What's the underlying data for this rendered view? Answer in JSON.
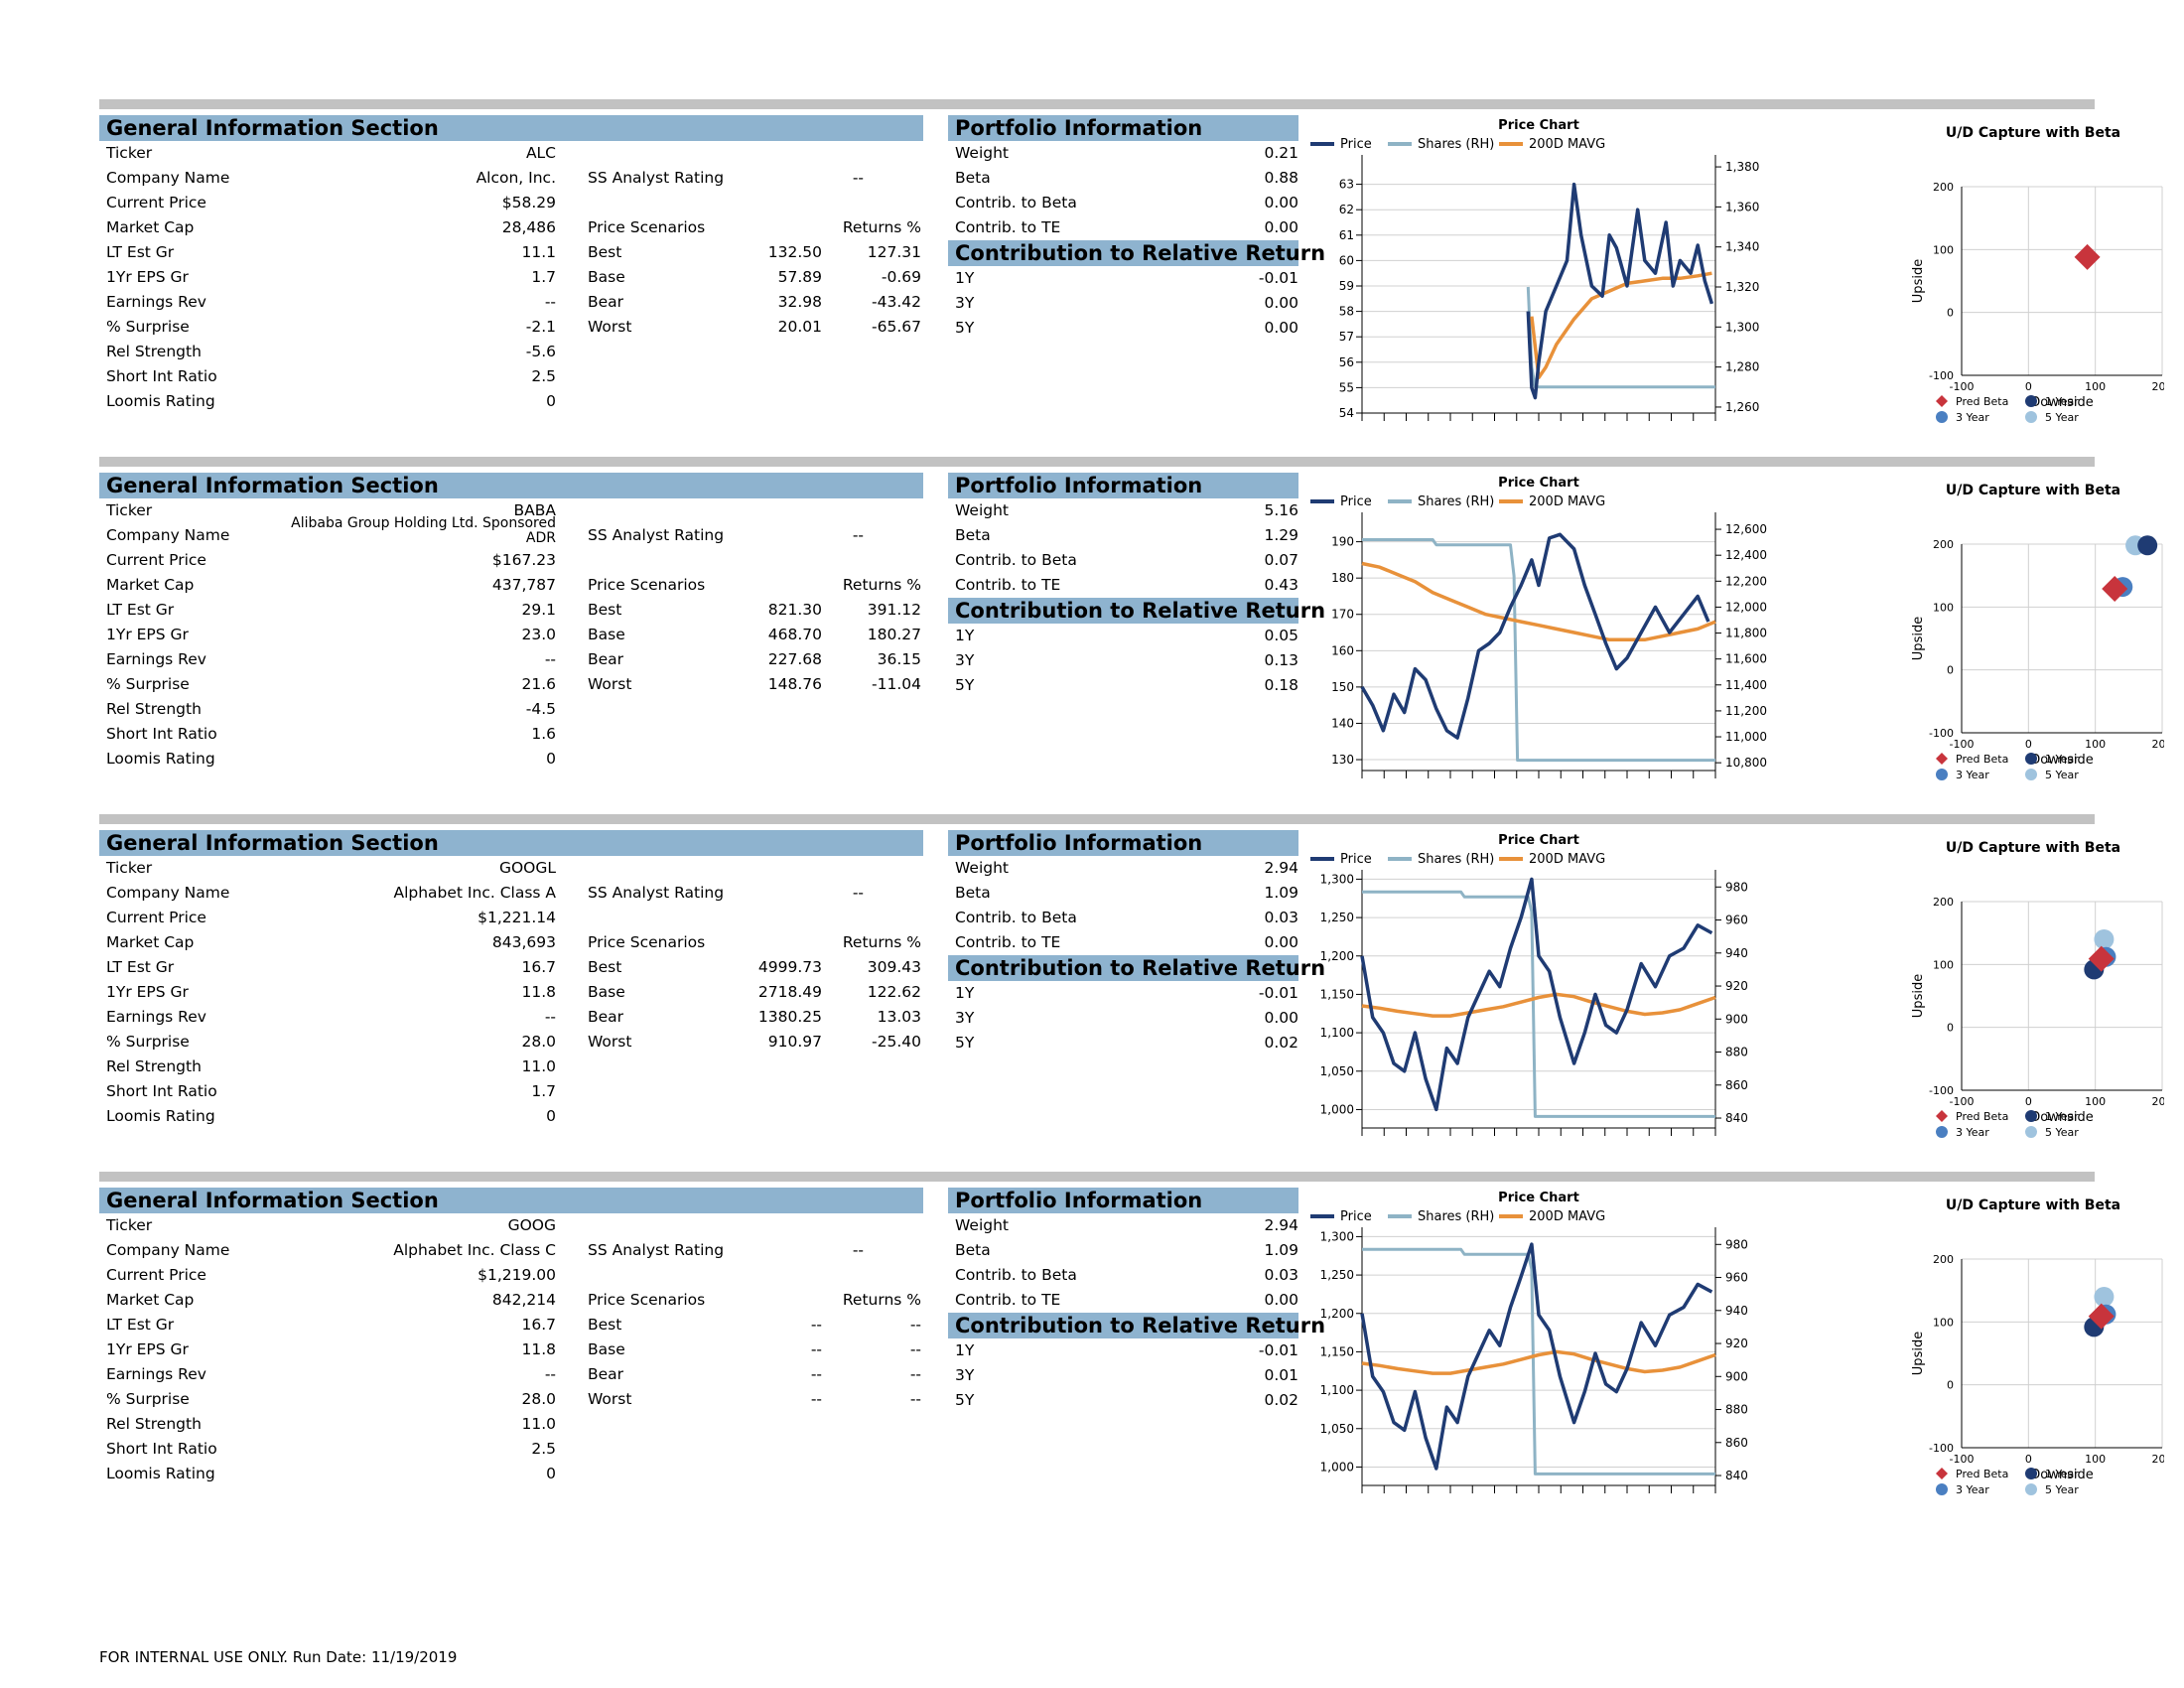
{
  "colors": {
    "section_header": "#8eb3cf",
    "divider": "#c2c2c2",
    "price": "#1f3b73",
    "shares": "#8eb3c5",
    "mavg": "#e8913a",
    "pred_beta": "#c8343c",
    "one_year": "#1f3b73",
    "three_year": "#4a7fc1",
    "five_year": "#9fc3de"
  },
  "footer": "FOR INTERNAL USE ONLY. Run Date: 11/19/2019",
  "labels": {
    "general_header": "General Information Section",
    "portfolio_header": "Portfolio Information",
    "contribution_header": "Contribution to Relative Return",
    "ss_analyst_rating": "SS Analyst Rating",
    "price_scenarios": "Price Scenarios",
    "returns_pct": "Returns %",
    "general_fields": [
      "Ticker",
      "Company Name",
      "Current Price",
      "Market Cap",
      "LT Est Gr",
      "1Yr EPS Gr",
      "Earnings Rev",
      "% Surprise",
      "Rel Strength",
      "Short Int Ratio",
      "Loomis Rating"
    ],
    "scenario_names": [
      "Best",
      "Base",
      "Bear",
      "Worst"
    ],
    "portfolio_fields": [
      "Weight",
      "Beta",
      "Contrib. to Beta",
      "Contrib. to TE"
    ],
    "contribution_fields": [
      "1Y",
      "3Y",
      "5Y"
    ],
    "price_chart_title": "Price Chart",
    "legend_price": "Price",
    "legend_shares": "Shares (RH)",
    "legend_mavg": "200D MAVG",
    "ud_title": "U/D Capture with Beta",
    "ud_xlabel": "Downside",
    "ud_ylabel": "Upside",
    "ud_legend": [
      "Pred Beta",
      "1 Year",
      "3 Year",
      "5 Year"
    ],
    "ud_ticks": [
      "-100",
      "0",
      "100",
      "200"
    ]
  },
  "stocks": [
    {
      "general": [
        "ALC",
        "Alcon, Inc.",
        "$58.29",
        "28,486",
        "11.1",
        "1.7",
        "--",
        "-2.1",
        "-5.6",
        "2.5",
        "0"
      ],
      "ss_rating": "--",
      "scenarios": [
        [
          "132.50",
          "127.31"
        ],
        [
          "57.89",
          "-0.69"
        ],
        [
          "32.98",
          "-43.42"
        ],
        [
          "20.01",
          "-65.67"
        ]
      ],
      "portfolio": [
        "0.21",
        "0.88",
        "0.00",
        "0.00"
      ],
      "contribution": [
        "-0.01",
        "0.00",
        "0.00"
      ]
    },
    {
      "general": [
        "BABA",
        "Alibaba Group Holding Ltd. Sponsored ADR",
        "$167.23",
        "437,787",
        "29.1",
        "23.0",
        "--",
        "21.6",
        "-4.5",
        "1.6",
        "0"
      ],
      "ss_rating": "--",
      "scenarios": [
        [
          "821.30",
          "391.12"
        ],
        [
          "468.70",
          "180.27"
        ],
        [
          "227.68",
          "36.15"
        ],
        [
          "148.76",
          "-11.04"
        ]
      ],
      "portfolio": [
        "5.16",
        "1.29",
        "0.07",
        "0.43"
      ],
      "contribution": [
        "0.05",
        "0.13",
        "0.18"
      ]
    },
    {
      "general": [
        "GOOGL",
        "Alphabet Inc. Class A",
        "$1,221.14",
        "843,693",
        "16.7",
        "11.8",
        "--",
        "28.0",
        "11.0",
        "1.7",
        "0"
      ],
      "ss_rating": "--",
      "scenarios": [
        [
          "4999.73",
          "309.43"
        ],
        [
          "2718.49",
          "122.62"
        ],
        [
          "1380.25",
          "13.03"
        ],
        [
          "910.97",
          "-25.40"
        ]
      ],
      "portfolio": [
        "2.94",
        "1.09",
        "0.03",
        "0.00"
      ],
      "contribution": [
        "-0.01",
        "0.00",
        "0.02"
      ]
    },
    {
      "general": [
        "GOOG",
        "Alphabet Inc. Class C",
        "$1,219.00",
        "842,214",
        "16.7",
        "11.8",
        "--",
        "28.0",
        "11.0",
        "2.5",
        "0"
      ],
      "ss_rating": "--",
      "scenarios": [
        [
          "--",
          "--"
        ],
        [
          "--",
          "--"
        ],
        [
          "--",
          "--"
        ],
        [
          "--",
          "--"
        ]
      ],
      "portfolio": [
        "2.94",
        "1.09",
        "0.03",
        "0.00"
      ],
      "contribution": [
        "-0.01",
        "0.01",
        "0.02"
      ]
    }
  ],
  "chart_data": [
    {
      "type": "line",
      "title": "Price Chart",
      "ticker": "ALC",
      "left_ticks": [
        "54",
        "55",
        "56",
        "57",
        "58",
        "59",
        "60",
        "61",
        "62",
        "63"
      ],
      "right_ticks": [
        "1,260",
        "1,280",
        "1,300",
        "1,320",
        "1,340",
        "1,360",
        "1,380"
      ],
      "ylim": [
        54,
        64
      ],
      "y2lim": [
        1257,
        1384
      ],
      "series": [
        {
          "name": "Price",
          "x": [
            0.47,
            0.48,
            0.49,
            0.5,
            0.52,
            0.55,
            0.58,
            0.6,
            0.62,
            0.65,
            0.68,
            0.7,
            0.72,
            0.75,
            0.78,
            0.8,
            0.83,
            0.86,
            0.88,
            0.9,
            0.93,
            0.95,
            0.97,
            0.99
          ],
          "values": [
            58,
            55,
            54.6,
            56,
            58,
            59,
            60,
            63,
            61,
            59,
            58.6,
            61,
            60.5,
            59,
            62,
            60,
            59.5,
            61.5,
            59,
            60,
            59.5,
            60.6,
            59.2,
            58.3
          ]
        },
        {
          "name": "Shares (RH)",
          "x": [
            0.47,
            0.48,
            0.49,
            1.0
          ],
          "values": [
            1320,
            1280,
            1270,
            1270
          ]
        },
        {
          "name": "200D MAVG",
          "x": [
            0.48,
            0.5,
            0.52,
            0.55,
            0.6,
            0.65,
            0.7,
            0.75,
            0.8,
            0.85,
            0.9,
            0.95,
            0.99
          ],
          "values": [
            57.8,
            55.4,
            55.8,
            56.7,
            57.7,
            58.5,
            58.8,
            59.1,
            59.2,
            59.3,
            59.3,
            59.4,
            59.5
          ]
        }
      ]
    },
    {
      "type": "line",
      "title": "Price Chart",
      "ticker": "BABA",
      "left_ticks": [
        "130",
        "140",
        "150",
        "160",
        "170",
        "180",
        "190"
      ],
      "right_ticks": [
        "10,800",
        "11,000",
        "11,200",
        "11,400",
        "11,600",
        "11,800",
        "12,000",
        "12,200",
        "12,400",
        "12,600"
      ],
      "ylim": [
        127,
        197
      ],
      "y2lim": [
        10740,
        12700
      ],
      "series": [
        {
          "name": "Price",
          "x": [
            0,
            0.03,
            0.06,
            0.09,
            0.12,
            0.15,
            0.18,
            0.21,
            0.24,
            0.27,
            0.3,
            0.33,
            0.36,
            0.39,
            0.42,
            0.45,
            0.48,
            0.5,
            0.53,
            0.56,
            0.6,
            0.63,
            0.66,
            0.69,
            0.72,
            0.75,
            0.79,
            0.83,
            0.87,
            0.91,
            0.95,
            0.98
          ],
          "values": [
            150,
            145,
            138,
            148,
            143,
            155,
            152,
            144,
            138,
            136,
            147,
            160,
            162,
            165,
            172,
            178,
            185,
            178,
            191,
            192,
            188,
            178,
            170,
            162,
            155,
            158,
            165,
            172,
            165,
            170,
            175,
            168
          ]
        },
        {
          "name": "Shares (RH)",
          "x": [
            0,
            0.2,
            0.21,
            0.42,
            0.43,
            0.44,
            1.0
          ],
          "values": [
            12520,
            12520,
            12480,
            12480,
            12240,
            10820,
            10820
          ]
        },
        {
          "name": "200D MAVG",
          "x": [
            0,
            0.05,
            0.1,
            0.15,
            0.2,
            0.25,
            0.3,
            0.35,
            0.4,
            0.45,
            0.5,
            0.55,
            0.6,
            0.65,
            0.7,
            0.75,
            0.8,
            0.85,
            0.9,
            0.95,
            1.0
          ],
          "values": [
            184,
            183,
            181,
            179,
            176,
            174,
            172,
            170,
            169,
            168,
            167,
            166,
            165,
            164,
            163,
            163,
            163,
            164,
            165,
            166,
            168
          ]
        }
      ]
    },
    {
      "type": "line",
      "title": "Price Chart",
      "ticker": "GOOGL",
      "left_ticks": [
        "1,000",
        "1,050",
        "1,100",
        "1,150",
        "1,200",
        "1,250",
        "1,300"
      ],
      "right_ticks": [
        "840",
        "860",
        "880",
        "900",
        "920",
        "940",
        "960",
        "980"
      ],
      "ylim": [
        976,
        1307
      ],
      "y2lim": [
        834,
        988
      ],
      "series": [
        {
          "name": "Price",
          "x": [
            0,
            0.03,
            0.06,
            0.09,
            0.12,
            0.15,
            0.18,
            0.21,
            0.24,
            0.27,
            0.3,
            0.33,
            0.36,
            0.39,
            0.42,
            0.45,
            0.48,
            0.5,
            0.53,
            0.56,
            0.6,
            0.63,
            0.66,
            0.69,
            0.72,
            0.75,
            0.79,
            0.83,
            0.87,
            0.91,
            0.95,
            0.99
          ],
          "values": [
            1200,
            1120,
            1100,
            1060,
            1050,
            1100,
            1040,
            1000,
            1080,
            1060,
            1120,
            1150,
            1180,
            1160,
            1210,
            1250,
            1300,
            1200,
            1180,
            1120,
            1060,
            1100,
            1150,
            1110,
            1100,
            1130,
            1190,
            1160,
            1200,
            1210,
            1240,
            1230
          ]
        },
        {
          "name": "Shares (RH)",
          "x": [
            0,
            0.28,
            0.29,
            0.47,
            0.48,
            0.49,
            1.0
          ],
          "values": [
            977,
            977,
            974,
            974,
            965,
            841,
            841
          ]
        },
        {
          "name": "200D MAVG",
          "x": [
            0,
            0.05,
            0.1,
            0.15,
            0.2,
            0.25,
            0.3,
            0.35,
            0.4,
            0.45,
            0.5,
            0.55,
            0.6,
            0.65,
            0.7,
            0.75,
            0.8,
            0.85,
            0.9,
            0.95,
            1.0
          ],
          "values": [
            1135,
            1132,
            1128,
            1125,
            1122,
            1122,
            1126,
            1130,
            1134,
            1140,
            1146,
            1150,
            1147,
            1140,
            1134,
            1128,
            1124,
            1126,
            1130,
            1138,
            1146
          ]
        }
      ]
    },
    {
      "type": "line",
      "title": "Price Chart",
      "ticker": "GOOG",
      "left_ticks": [
        "1,000",
        "1,050",
        "1,100",
        "1,150",
        "1,200",
        "1,250",
        "1,300"
      ],
      "right_ticks": [
        "840",
        "860",
        "880",
        "900",
        "920",
        "940",
        "960",
        "980"
      ],
      "ylim": [
        976,
        1307
      ],
      "y2lim": [
        834,
        988
      ],
      "series": [
        {
          "name": "Price",
          "x": [
            0,
            0.03,
            0.06,
            0.09,
            0.12,
            0.15,
            0.18,
            0.21,
            0.24,
            0.27,
            0.3,
            0.33,
            0.36,
            0.39,
            0.42,
            0.45,
            0.48,
            0.5,
            0.53,
            0.56,
            0.6,
            0.63,
            0.66,
            0.69,
            0.72,
            0.75,
            0.79,
            0.83,
            0.87,
            0.91,
            0.95,
            0.99
          ],
          "values": [
            1200,
            1118,
            1098,
            1058,
            1048,
            1098,
            1038,
            998,
            1078,
            1058,
            1118,
            1148,
            1178,
            1158,
            1208,
            1248,
            1290,
            1198,
            1178,
            1118,
            1058,
            1098,
            1148,
            1108,
            1098,
            1128,
            1188,
            1158,
            1198,
            1208,
            1238,
            1228
          ]
        },
        {
          "name": "Shares (RH)",
          "x": [
            0,
            0.28,
            0.29,
            0.47,
            0.48,
            0.49,
            1.0
          ],
          "values": [
            977,
            977,
            974,
            974,
            965,
            841,
            841
          ]
        },
        {
          "name": "200D MAVG",
          "x": [
            0,
            0.05,
            0.1,
            0.15,
            0.2,
            0.25,
            0.3,
            0.35,
            0.4,
            0.45,
            0.5,
            0.55,
            0.6,
            0.65,
            0.7,
            0.75,
            0.8,
            0.85,
            0.9,
            0.95,
            1.0
          ],
          "values": [
            1135,
            1132,
            1128,
            1125,
            1122,
            1122,
            1126,
            1130,
            1134,
            1140,
            1146,
            1150,
            1147,
            1140,
            1134,
            1128,
            1124,
            1126,
            1130,
            1138,
            1146
          ]
        }
      ]
    },
    {
      "type": "scatter",
      "title": "U/D Capture with Beta",
      "ticker": "ALC",
      "xlabel": "Downside",
      "ylabel": "Upside",
      "xlim": [
        -100,
        200
      ],
      "ylim": [
        -100,
        200
      ],
      "points": [
        {
          "name": "Pred Beta",
          "x": 88,
          "y": 88
        }
      ]
    },
    {
      "type": "scatter",
      "title": "U/D Capture with Beta",
      "ticker": "BABA",
      "xlabel": "Downside",
      "ylabel": "Upside",
      "xlim": [
        -100,
        200
      ],
      "ylim": [
        -100,
        200
      ],
      "points": [
        {
          "name": "Pred Beta",
          "x": 129,
          "y": 129
        },
        {
          "name": "1 Year",
          "x": 178,
          "y": 198
        },
        {
          "name": "3 Year",
          "x": 141,
          "y": 132
        },
        {
          "name": "5 Year",
          "x": 160,
          "y": 198
        }
      ]
    },
    {
      "type": "scatter",
      "title": "U/D Capture with Beta",
      "ticker": "GOOGL",
      "xlabel": "Downside",
      "ylabel": "Upside",
      "xlim": [
        -100,
        200
      ],
      "ylim": [
        -100,
        200
      ],
      "points": [
        {
          "name": "Pred Beta",
          "x": 109,
          "y": 109
        },
        {
          "name": "1 Year",
          "x": 98,
          "y": 92
        },
        {
          "name": "3 Year",
          "x": 116,
          "y": 112
        },
        {
          "name": "5 Year",
          "x": 113,
          "y": 140
        }
      ]
    },
    {
      "type": "scatter",
      "title": "U/D Capture with Beta",
      "ticker": "GOOG",
      "xlabel": "Downside",
      "ylabel": "Upside",
      "xlim": [
        -100,
        200
      ],
      "ylim": [
        -100,
        200
      ],
      "points": [
        {
          "name": "Pred Beta",
          "x": 109,
          "y": 109
        },
        {
          "name": "1 Year",
          "x": 98,
          "y": 92
        },
        {
          "name": "3 Year",
          "x": 116,
          "y": 112
        },
        {
          "name": "5 Year",
          "x": 113,
          "y": 140
        }
      ]
    }
  ]
}
